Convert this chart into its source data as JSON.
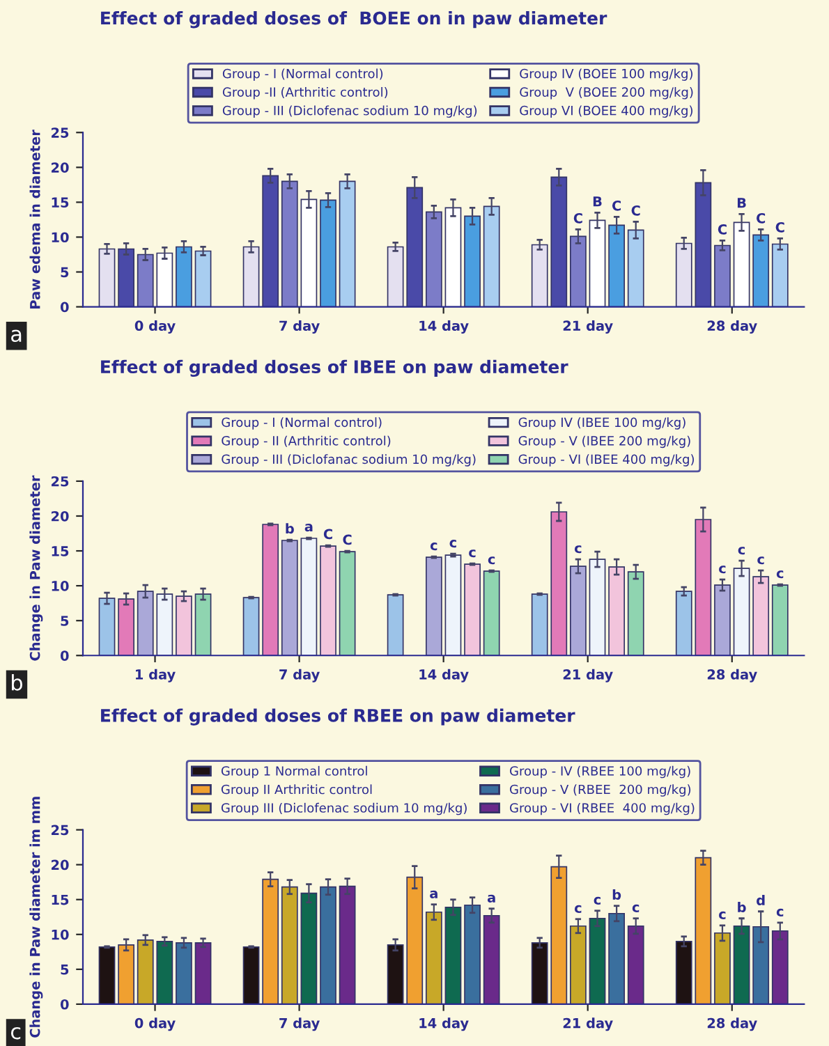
{
  "chart_data": [
    {
      "type": "bar",
      "title": "Effect of graded doses of  BOEE on in paw diameter",
      "ylabel": "Paw edema in diameter",
      "categories": [
        "0 day",
        "7 day",
        "14 day",
        "21 day",
        "28 day"
      ],
      "ylim": [
        0,
        25
      ],
      "yticks": [
        0,
        5,
        10,
        15,
        20,
        25
      ],
      "legend": "top",
      "grid": false,
      "series": [
        {
          "name": "Group - I (Normal control)",
          "color": "#e4e0f0",
          "values": [
            8.3,
            8.6,
            8.6,
            8.9,
            9.1
          ],
          "errors": [
            0.7,
            0.8,
            0.6,
            0.7,
            0.8
          ]
        },
        {
          "name": "Group -II (Arthritic control)",
          "color": "#4a4aa8",
          "values": [
            8.3,
            18.8,
            17.1,
            18.6,
            17.8
          ],
          "errors": [
            0.8,
            1.0,
            1.5,
            1.2,
            1.8
          ]
        },
        {
          "name": "Group - III (Diclofenac sodium 10 mg/kg)",
          "color": "#7c7cc8",
          "values": [
            7.5,
            18.0,
            13.6,
            10.1,
            8.8
          ],
          "errors": [
            0.8,
            1.0,
            0.9,
            1.0,
            0.7
          ],
          "value_labels": [
            null,
            null,
            null,
            "C",
            "C"
          ]
        },
        {
          "name": "Group IV (BOEE 100 mg/kg)",
          "color": "#ffffff",
          "values": [
            7.7,
            15.4,
            14.2,
            12.4,
            12.1
          ],
          "errors": [
            0.8,
            1.2,
            1.2,
            1.1,
            1.2
          ],
          "value_labels": [
            null,
            null,
            null,
            "B",
            "B"
          ]
        },
        {
          "name": "Group  V (BOEE 200 mg/kg)",
          "color": "#4a9ee0",
          "values": [
            8.6,
            15.3,
            13.0,
            11.7,
            10.3
          ],
          "errors": [
            0.8,
            1.0,
            1.2,
            1.2,
            0.8
          ],
          "value_labels": [
            null,
            null,
            null,
            "C",
            "C"
          ]
        },
        {
          "name": "Group VI (BOEE 400 mg/kg)",
          "color": "#a8cdf0",
          "values": [
            8.0,
            18.0,
            14.4,
            11.0,
            9.0
          ],
          "errors": [
            0.6,
            1.0,
            1.2,
            1.2,
            0.8
          ],
          "value_labels": [
            null,
            null,
            null,
            "C",
            "C"
          ]
        }
      ],
      "annotations": [
        "a"
      ]
    },
    {
      "type": "bar",
      "title": "Effect of graded doses of IBEE on paw diameter",
      "ylabel": "Change in Paw diameter",
      "categories": [
        "1 day",
        "7 day",
        "14 day",
        "21 day",
        "28 day"
      ],
      "ylim": [
        0,
        25
      ],
      "yticks": [
        0,
        5,
        10,
        15,
        20,
        25
      ],
      "legend": "top",
      "grid": false,
      "series": [
        {
          "name": "Group - I (Normal control)",
          "color": "#9cc3e8",
          "values": [
            8.2,
            8.3,
            8.7,
            8.8,
            9.2
          ],
          "errors": [
            0.8,
            0.1,
            0.1,
            0.1,
            0.6
          ]
        },
        {
          "name": "Group - II (Arthritic control)",
          "color": "#e27ab8",
          "values": [
            8.1,
            18.8,
            null,
            20.6,
            19.5
          ],
          "errors": [
            0.8,
            0.1,
            null,
            1.3,
            1.7
          ]
        },
        {
          "name": "Group - III (Diclofanac sodium 10 mg/kg)",
          "color": "#aaa8d8",
          "values": [
            9.2,
            16.5,
            14.1,
            12.8,
            10.1
          ],
          "errors": [
            0.9,
            0.1,
            0.1,
            1.0,
            0.8
          ],
          "value_labels": [
            null,
            "b",
            "c",
            "c",
            "c"
          ]
        },
        {
          "name": "Group IV (IBEE 100 mg/kg)",
          "color": "#eef4fb",
          "values": [
            8.8,
            16.8,
            14.4,
            13.8,
            12.5
          ],
          "errors": [
            0.8,
            0.1,
            0.2,
            1.1,
            1.1
          ],
          "value_labels": [
            null,
            "a",
            "c",
            null,
            "c"
          ]
        },
        {
          "name": "Group - V (IBEE 200 mg/kg)",
          "color": "#f2c4dc",
          "values": [
            8.5,
            15.7,
            13.1,
            12.7,
            11.3
          ],
          "errors": [
            0.7,
            0.1,
            0.1,
            1.1,
            0.9
          ],
          "value_labels": [
            null,
            "C",
            "c",
            null,
            "c"
          ]
        },
        {
          "name": "Group - VI (IBEE 400 mg/kg)",
          "color": "#8fd4b0",
          "values": [
            8.8,
            14.9,
            12.1,
            12.0,
            10.1
          ],
          "errors": [
            0.8,
            0.1,
            0.1,
            1.0,
            0.1
          ],
          "value_labels": [
            null,
            "C",
            "c",
            null,
            "c"
          ]
        }
      ],
      "annotations": [
        "b"
      ]
    },
    {
      "type": "bar",
      "title": "Effect of graded doses of RBEE on paw diameter",
      "ylabel": "Change in Paw diameter im mm",
      "categories": [
        "0 day",
        "7 day",
        "14 day",
        "21 day",
        "28 day"
      ],
      "ylim": [
        0,
        25
      ],
      "yticks": [
        0,
        5,
        10,
        15,
        20,
        25
      ],
      "legend": "top",
      "grid": false,
      "series": [
        {
          "name": "Group 1 Normal control",
          "color": "#1e1212",
          "values": [
            8.2,
            8.2,
            8.5,
            8.8,
            9.0
          ],
          "errors": [
            0.1,
            0.1,
            0.8,
            0.7,
            0.7
          ]
        },
        {
          "name": "Group II Arthritic control",
          "color": "#f0a030",
          "values": [
            8.5,
            17.9,
            18.2,
            19.7,
            21.0
          ],
          "errors": [
            0.8,
            1.0,
            1.6,
            1.6,
            1.0
          ]
        },
        {
          "name": "Group III (Diclofenac sodium 10 mg/kg)",
          "color": "#c8a828",
          "values": [
            9.2,
            16.8,
            13.2,
            11.2,
            10.2
          ],
          "errors": [
            0.7,
            1.0,
            1.1,
            1.0,
            1.1
          ],
          "value_labels": [
            null,
            null,
            "a",
            "c",
            "c"
          ]
        },
        {
          "name": "Group - IV (RBEE 100 mg/kg)",
          "color": "#0f6a50",
          "values": [
            9.0,
            15.9,
            13.9,
            12.3,
            11.2
          ],
          "errors": [
            0.6,
            1.3,
            1.1,
            1.1,
            1.1
          ],
          "value_labels": [
            null,
            null,
            null,
            "c",
            "b"
          ]
        },
        {
          "name": "Group - V (RBEE  200 mg/kg)",
          "color": "#3a6f9e",
          "values": [
            8.8,
            16.8,
            14.2,
            13.0,
            11.1
          ],
          "errors": [
            0.7,
            1.1,
            1.1,
            1.1,
            2.2
          ],
          "value_labels": [
            null,
            null,
            null,
            "b",
            "d"
          ]
        },
        {
          "name": "Group - VI (RBEE  400 mg/kg)",
          "color": "#6a2a8a",
          "values": [
            8.8,
            16.9,
            12.7,
            11.2,
            10.5
          ],
          "errors": [
            0.6,
            1.1,
            1.0,
            1.1,
            1.2
          ],
          "value_labels": [
            null,
            null,
            "a",
            "c",
            "c"
          ]
        }
      ],
      "annotations": [
        "c"
      ]
    }
  ]
}
